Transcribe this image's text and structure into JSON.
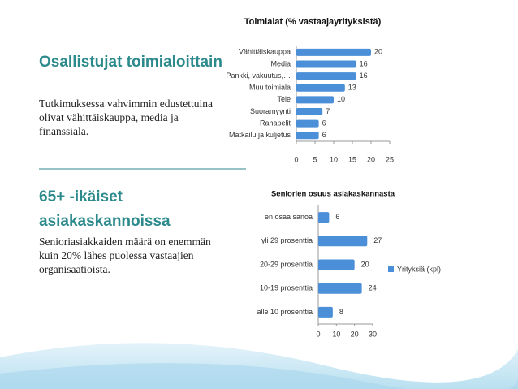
{
  "slide": {
    "section1": {
      "heading": "Osallistujat toimialoittain",
      "text": "Tutkimuksessa vahvimmin edustettuina olivat vähittäiskauppa, media ja finanssiala."
    },
    "section2": {
      "heading": "65+ -ikäiset asiakaskannoissa",
      "text": "Senioriasiakkaiden määrä on enemmän kuin 20% lähes puolessa vastaajien organisaatioista."
    }
  },
  "chart_data": [
    {
      "type": "hbar",
      "title": "Toimialat (% vastaajayrityksistä)",
      "categories": [
        "Vähittäiskauppa",
        "Media",
        "Pankki, vakuutus,…",
        "Muu toimiala",
        "Tele",
        "Suoramyynti",
        "Rahapelit",
        "Matkailu ja kuljetus"
      ],
      "values": [
        20,
        16,
        16,
        13,
        10,
        7,
        6,
        6
      ],
      "color": "#4a8fd8",
      "xlim": [
        0,
        25
      ],
      "xticks": [
        0,
        5,
        10,
        15,
        20,
        25
      ]
    },
    {
      "type": "hbar",
      "title": "Seniorien osuus asiakaskannasta",
      "categories": [
        "en osaa sanoa",
        "yli 29 prosenttia",
        "20-29 prosenttia",
        "10-19 prosenttia",
        "alle 10 prosenttia"
      ],
      "series": [
        {
          "name": "Yrityksiä (kpl)",
          "color": "#4a8fd8",
          "values": [
            6,
            27,
            20,
            24,
            8
          ]
        }
      ],
      "xlim": [
        0,
        30
      ],
      "xticks": [
        0,
        10,
        20,
        30
      ],
      "legend": "right"
    }
  ]
}
